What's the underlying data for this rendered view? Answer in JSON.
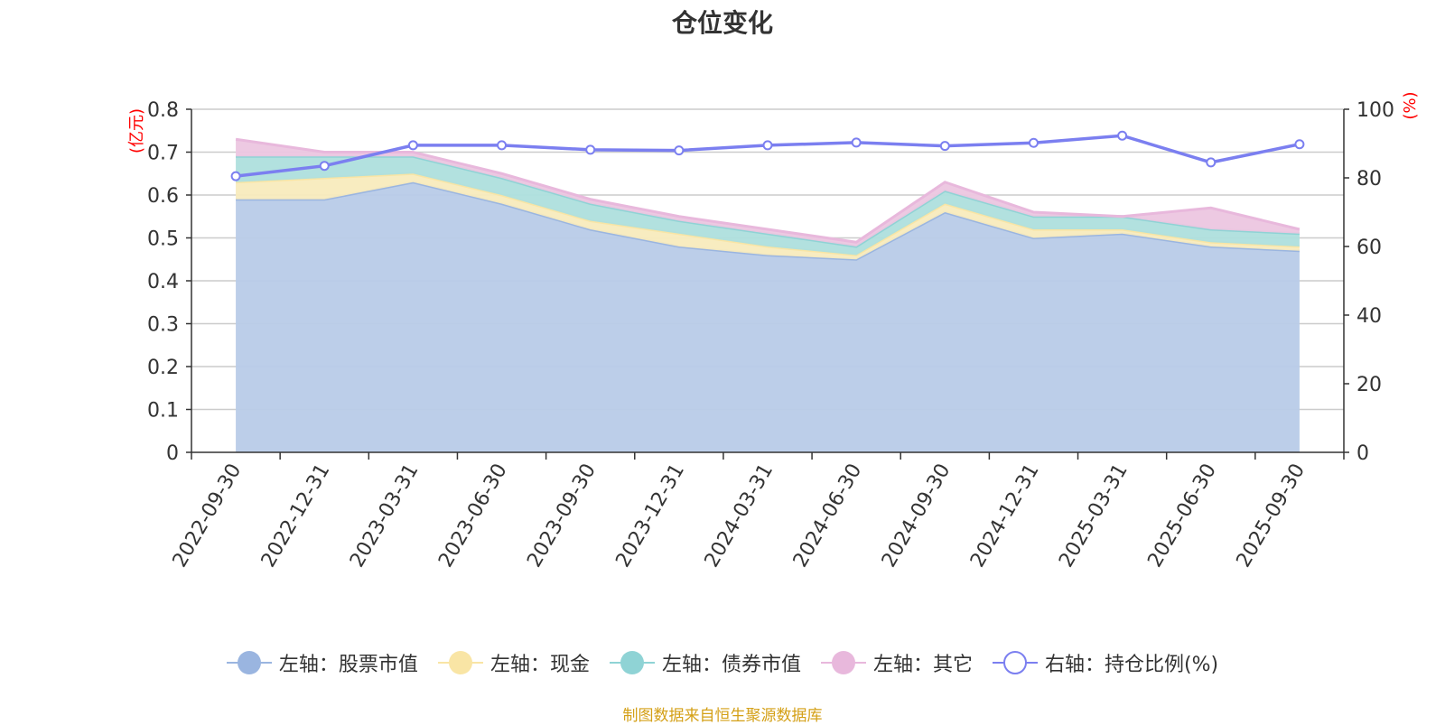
{
  "chart_data": {
    "type": "area",
    "title": "仓位变化",
    "source": "制图数据来自恒生聚源数据库",
    "categories": [
      "2022-09-30",
      "2022-12-31",
      "2023-03-31",
      "2023-06-30",
      "2023-09-30",
      "2023-12-31",
      "2024-03-31",
      "2024-06-30",
      "2024-09-30",
      "2024-12-31",
      "2025-03-31",
      "2025-06-30",
      "2025-09-30"
    ],
    "left_axis": {
      "unit": "(亿元)",
      "ylim": [
        0,
        0.8
      ],
      "ticks": [
        "0",
        "0.1",
        "0.2",
        "0.3",
        "0.4",
        "0.5",
        "0.6",
        "0.7",
        "0.8"
      ]
    },
    "right_axis": {
      "unit": "(%)",
      "ylim": [
        0,
        100
      ],
      "ticks": [
        "0",
        "20",
        "40",
        "60",
        "80",
        "100"
      ]
    },
    "stacked_series": [
      {
        "name": "左轴：股票市值",
        "color": "#9ab5e0",
        "fill": "#b8cbe8",
        "values": [
          0.59,
          0.59,
          0.63,
          0.58,
          0.52,
          0.48,
          0.46,
          0.45,
          0.56,
          0.5,
          0.51,
          0.48,
          0.47
        ]
      },
      {
        "name": "左轴：现金",
        "color": "#f9e5a5",
        "fill": "#f8ebbd",
        "values": [
          0.04,
          0.05,
          0.02,
          0.02,
          0.02,
          0.03,
          0.02,
          0.01,
          0.02,
          0.02,
          0.01,
          0.01,
          0.01
        ]
      },
      {
        "name": "左轴：债券市值",
        "color": "#8fd3d5",
        "fill": "#aedfdd",
        "values": [
          0.06,
          0.05,
          0.04,
          0.04,
          0.04,
          0.03,
          0.03,
          0.02,
          0.03,
          0.03,
          0.03,
          0.03,
          0.03
        ]
      },
      {
        "name": "左轴：其它",
        "color": "#e8b8dc",
        "fill": "#ecc6e0",
        "values": [
          0.04,
          0.01,
          0.01,
          0.01,
          0.01,
          0.01,
          0.01,
          0.01,
          0.02,
          0.01,
          0.0,
          0.05,
          0.01
        ]
      }
    ],
    "line_series": {
      "name": "右轴：持仓比例(%)",
      "color": "#7b7ff0",
      "values": [
        80.5,
        83.5,
        89.5,
        89.5,
        88.2,
        88.0,
        89.5,
        90.3,
        89.3,
        90.2,
        92.3,
        84.5,
        89.8
      ]
    }
  }
}
